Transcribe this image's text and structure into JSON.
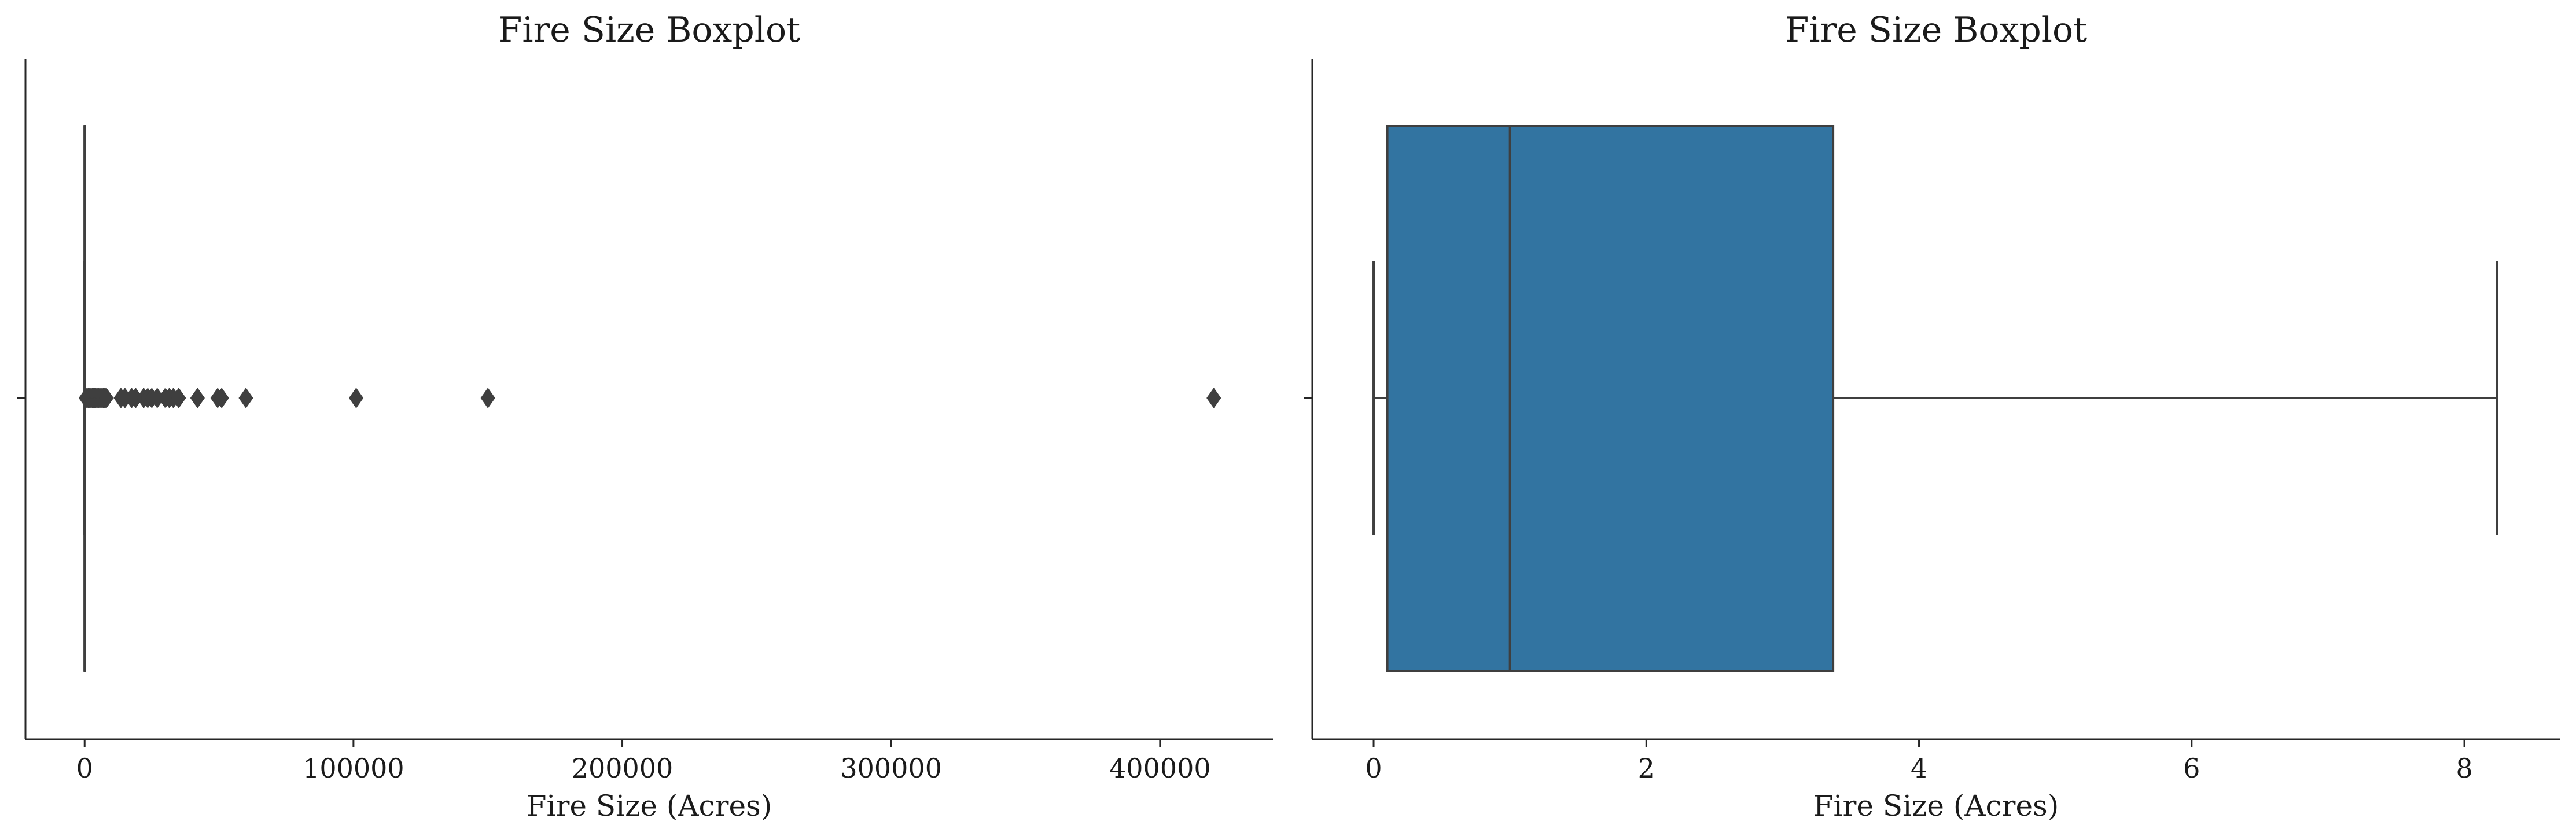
{
  "chart_data": [
    {
      "type": "boxplot",
      "title": "Fire Size Boxplot",
      "xlabel": "Fire Size (Acres)",
      "ylabel": "",
      "xlim": [
        -22000,
        442000
      ],
      "xticks": [
        0,
        100000,
        200000,
        300000,
        400000
      ],
      "xtick_labels": [
        "0",
        "100000",
        "200000",
        "300000",
        "400000"
      ],
      "box": {
        "whisker_low": 0,
        "q1": 0.1,
        "median": 1,
        "q3": 3.4,
        "whisker_high": 8.2,
        "color": "#3274a1"
      },
      "outliers": [
        500,
        900,
        1300,
        1700,
        2100,
        2500,
        2900,
        3300,
        3700,
        4100,
        4500,
        4900,
        5300,
        5700,
        6100,
        6500,
        6900,
        7300,
        7700,
        8100,
        13500,
        15000,
        17500,
        19000,
        22000,
        23500,
        25000,
        27000,
        30000,
        31500,
        33000,
        35000,
        42000,
        49500,
        51000,
        60000,
        101000,
        150000,
        420000
      ],
      "outlier_color": "#3f3f3f"
    },
    {
      "type": "boxplot",
      "title": "Fire Size Boxplot",
      "xlabel": "Fire Size (Acres)",
      "ylabel": "",
      "xlim": [
        -0.45,
        8.7
      ],
      "xticks": [
        0,
        2,
        4,
        6,
        8
      ],
      "xtick_labels": [
        "0",
        "2",
        "4",
        "6",
        "8"
      ],
      "box": {
        "whisker_low": 0,
        "q1": 0.1,
        "median": 1,
        "q3": 3.37,
        "whisker_high": 8.24,
        "color": "#3274a1"
      },
      "outliers": [],
      "outlier_color": "#3f3f3f"
    }
  ]
}
